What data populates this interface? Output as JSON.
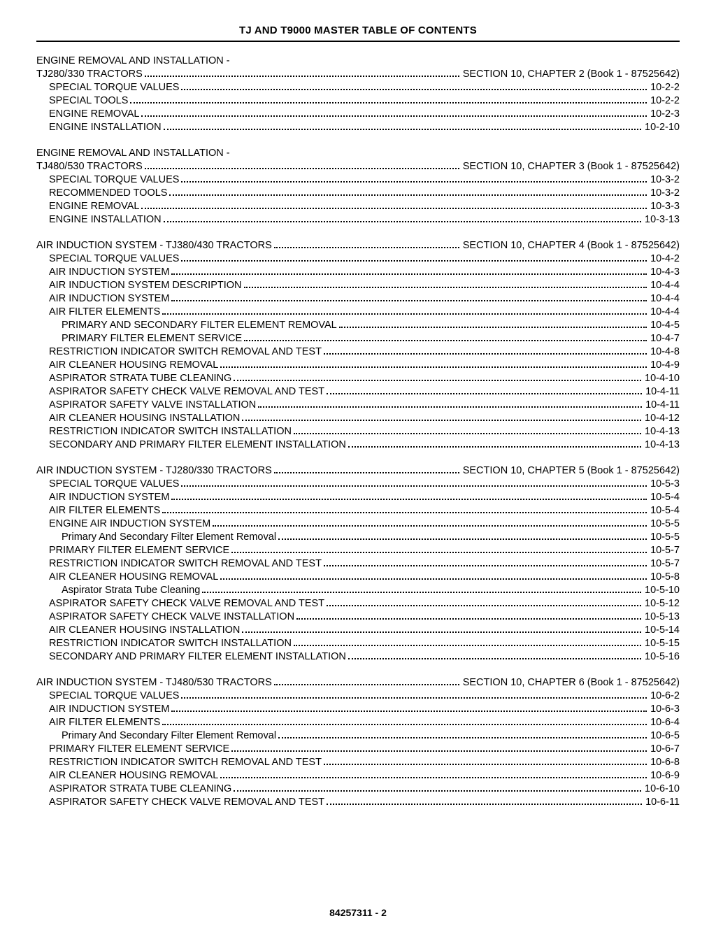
{
  "colors": {
    "text": "#000000",
    "background": "#ffffff",
    "rule": "#000000",
    "leader": "#000000"
  },
  "title": "TJ AND T9000 MASTER TABLE OF CONTENTS",
  "footer": "84257311 - 2",
  "sections": [
    {
      "preheading": "ENGINE REMOVAL AND INSTALLATION -",
      "heading_left": "TJ280/330 TRACTORS",
      "heading_right": "SECTION 10, CHAPTER 2 (Book 1 - 87525642)",
      "entries": [
        {
          "label": "SPECIAL TORQUE VALUES",
          "page": "10-2-2",
          "indent": 1
        },
        {
          "label": "SPECIAL TOOLS",
          "page": "10-2-2",
          "indent": 1
        },
        {
          "label": "ENGINE REMOVAL",
          "page": "10-2-3",
          "indent": 1
        },
        {
          "label": "ENGINE INSTALLATION",
          "page": "10-2-10",
          "indent": 1
        }
      ]
    },
    {
      "preheading": "ENGINE REMOVAL AND INSTALLATION -",
      "heading_left": "TJ480/530 TRACTORS",
      "heading_right": "SECTION 10, CHAPTER 3 (Book 1 - 87525642)",
      "entries": [
        {
          "label": "SPECIAL TORQUE VALUES",
          "page": "10-3-2",
          "indent": 1
        },
        {
          "label": "RECOMMENDED TOOLS",
          "page": "10-3-2",
          "indent": 1
        },
        {
          "label": "ENGINE REMOVAL",
          "page": "10-3-3",
          "indent": 1
        },
        {
          "label": "ENGINE INSTALLATION",
          "page": "10-3-13",
          "indent": 1
        }
      ]
    },
    {
      "preheading": null,
      "heading_left": "AIR INDUCTION SYSTEM - TJ380/430 TRACTORS",
      "heading_right": "SECTION 10, CHAPTER 4 (Book 1 - 87525642)",
      "entries": [
        {
          "label": "SPECIAL TORQUE VALUES",
          "page": "10-4-2",
          "indent": 1
        },
        {
          "label": "AIR INDUCTION SYSTEM",
          "page": "10-4-3",
          "indent": 1
        },
        {
          "label": "AIR INDUCTION SYSTEM DESCRIPTION",
          "page": "10-4-4",
          "indent": 1
        },
        {
          "label": "AIR INDUCTION SYSTEM",
          "page": "10-4-4",
          "indent": 1
        },
        {
          "label": "AIR FILTER ELEMENTS",
          "page": "10-4-4",
          "indent": 1
        },
        {
          "label": "PRIMARY AND SECONDARY FILTER ELEMENT REMOVAL",
          "page": "10-4-5",
          "indent": 2
        },
        {
          "label": "PRIMARY FILTER ELEMENT SERVICE",
          "page": "10-4-7",
          "indent": 2
        },
        {
          "label": "RESTRICTION INDICATOR SWITCH REMOVAL AND TEST",
          "page": "10-4-8",
          "indent": 1
        },
        {
          "label": "AIR CLEANER HOUSING REMOVAL",
          "page": "10-4-9",
          "indent": 1
        },
        {
          "label": "ASPIRATOR STRATA TUBE CLEANING",
          "page": "10-4-10",
          "indent": 1
        },
        {
          "label": "ASPIRATOR SAFETY CHECK VALVE REMOVAL AND TEST",
          "page": "10-4-11",
          "indent": 1
        },
        {
          "label": "ASPIRATOR SAFETY VALVE INSTALLATION",
          "page": "10-4-11",
          "indent": 1
        },
        {
          "label": "AIR CLEANER HOUSING INSTALLATION",
          "page": "10-4-12",
          "indent": 1
        },
        {
          "label": "RESTRICTION INDICATOR SWITCH INSTALLATION",
          "page": "10-4-13",
          "indent": 1
        },
        {
          "label": "SECONDARY AND PRIMARY FILTER ELEMENT INSTALLATION",
          "page": "10-4-13",
          "indent": 1
        }
      ]
    },
    {
      "preheading": null,
      "heading_left": "AIR INDUCTION SYSTEM - TJ280/330 TRACTORS",
      "heading_right": "SECTION 10, CHAPTER 5 (Book 1 - 87525642)",
      "entries": [
        {
          "label": "SPECIAL TORQUE VALUES",
          "page": "10-5-3",
          "indent": 1
        },
        {
          "label": "AIR INDUCTION SYSTEM",
          "page": "10-5-4",
          "indent": 1
        },
        {
          "label": "AIR FILTER ELEMENTS",
          "page": "10-5-4",
          "indent": 1
        },
        {
          "label": "ENGINE AIR INDUCTION SYSTEM",
          "page": "10-5-5",
          "indent": 1
        },
        {
          "label": "Primary And Secondary Filter Element Removal",
          "page": "10-5-5",
          "indent": 2
        },
        {
          "label": "PRIMARY FILTER ELEMENT SERVICE",
          "page": "10-5-7",
          "indent": 1
        },
        {
          "label": "RESTRICTION INDICATOR SWITCH REMOVAL AND TEST",
          "page": "10-5-7",
          "indent": 1
        },
        {
          "label": "AIR CLEANER HOUSING REMOVAL",
          "page": "10-5-8",
          "indent": 1
        },
        {
          "label": "Aspirator Strata Tube Cleaning",
          "page": "10-5-10",
          "indent": 2
        },
        {
          "label": "ASPIRATOR SAFETY CHECK VALVE REMOVAL AND TEST",
          "page": "10-5-12",
          "indent": 1
        },
        {
          "label": "ASPIRATOR SAFETY CHECK VALVE INSTALLATION",
          "page": "10-5-13",
          "indent": 1
        },
        {
          "label": "AIR CLEANER HOUSING INSTALLATION",
          "page": "10-5-14",
          "indent": 1
        },
        {
          "label": "RESTRICTION INDICATOR SWITCH INSTALLATION",
          "page": "10-5-15",
          "indent": 1
        },
        {
          "label": "SECONDARY AND PRIMARY FILTER ELEMENT INSTALLATION",
          "page": "10-5-16",
          "indent": 1
        }
      ]
    },
    {
      "preheading": null,
      "heading_left": "AIR INDUCTION SYSTEM - TJ480/530 TRACTORS",
      "heading_right": "SECTION 10, CHAPTER 6 (Book 1 - 87525642)",
      "entries": [
        {
          "label": "SPECIAL TORQUE VALUES",
          "page": "10-6-2",
          "indent": 1
        },
        {
          "label": "AIR INDUCTION SYSTEM",
          "page": "10-6-3",
          "indent": 1
        },
        {
          "label": "AIR FILTER ELEMENTS",
          "page": "10-6-4",
          "indent": 1
        },
        {
          "label": "Primary And Secondary Filter Element Removal",
          "page": "10-6-5",
          "indent": 2
        },
        {
          "label": "PRIMARY FILTER ELEMENT SERVICE",
          "page": "10-6-7",
          "indent": 1
        },
        {
          "label": "RESTRICTION INDICATOR SWITCH REMOVAL AND TEST",
          "page": "10-6-8",
          "indent": 1
        },
        {
          "label": "AIR CLEANER HOUSING REMOVAL",
          "page": "10-6-9",
          "indent": 1
        },
        {
          "label": "ASPIRATOR STRATA TUBE CLEANING",
          "page": "10-6-10",
          "indent": 1
        },
        {
          "label": "ASPIRATOR SAFETY CHECK VALVE REMOVAL AND TEST",
          "page": "10-6-11",
          "indent": 1
        }
      ]
    }
  ]
}
